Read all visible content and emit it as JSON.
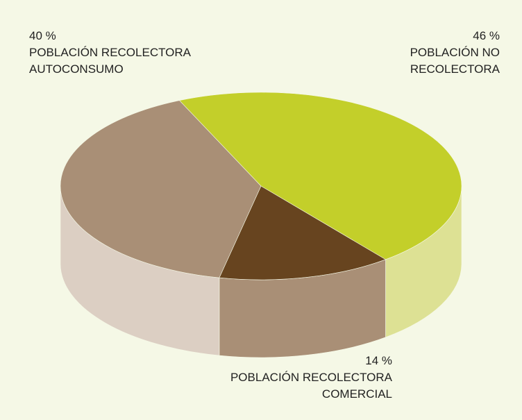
{
  "chart_data": {
    "type": "pie3d",
    "categories": [
      "POBLACIÓN NO\nRECOLECTORA",
      "POBLACIÓN RECOLECTORA\nCOMERCIAL",
      "POBLACIÓN RECOLECTORA\nAUTOCONSUMO"
    ],
    "values": [
      46,
      14,
      40
    ],
    "value_labels": [
      "46 %",
      "14 %",
      "40 %"
    ],
    "colors": [
      "#c3cf2a",
      "#67441f",
      "#a98f76"
    ],
    "side_colors": [
      "#dde194",
      "#a98f76",
      "#dccfc3"
    ]
  }
}
